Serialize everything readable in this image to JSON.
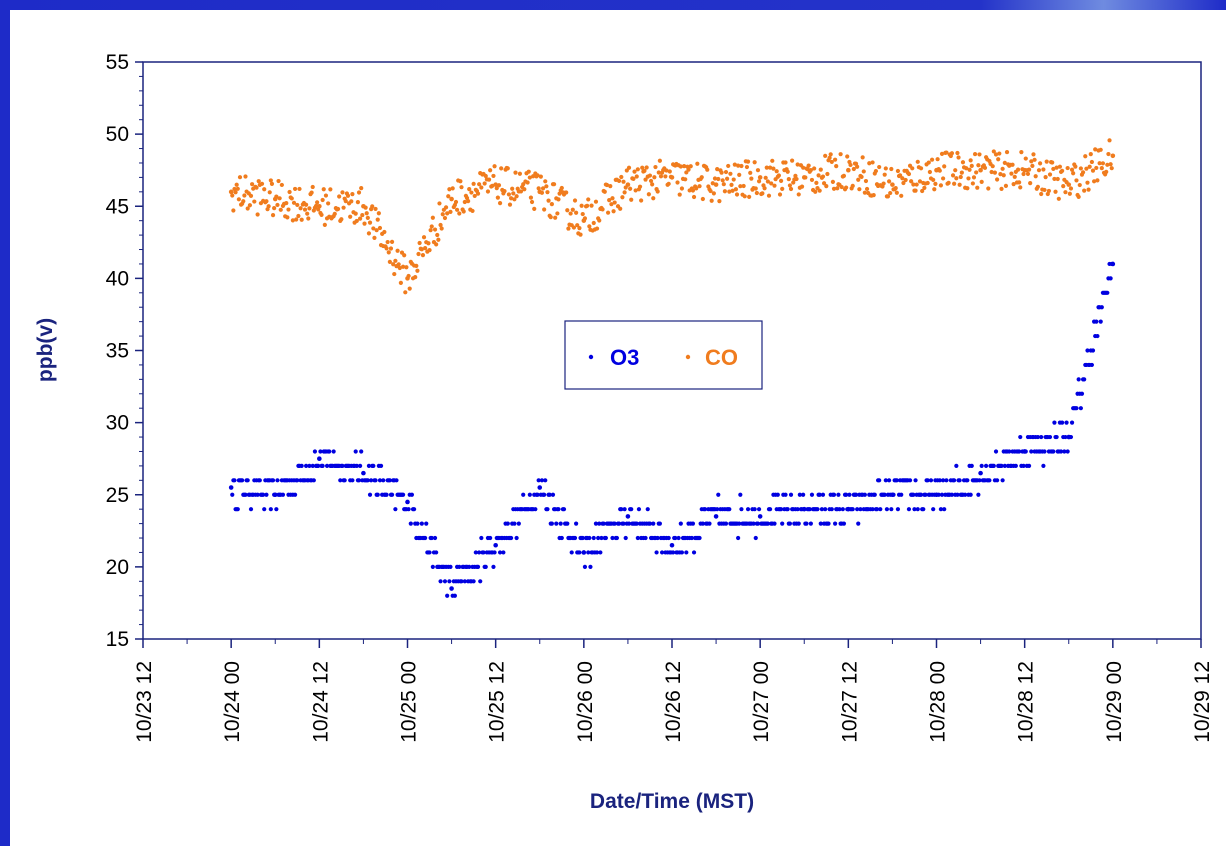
{
  "chart_data": {
    "type": "scatter",
    "xlabel": "Date/Time (MST)",
    "ylabel": "ppb(v)",
    "ylim": [
      15,
      55
    ],
    "yticks": [
      15,
      20,
      25,
      30,
      35,
      40,
      45,
      50,
      55
    ],
    "xlim": [
      "10/23 12",
      "10/29 12"
    ],
    "xticks": [
      "10/23 12",
      "10/24 00",
      "10/24 12",
      "10/25 00",
      "10/25 12",
      "10/26 00",
      "10/26 12",
      "10/27 00",
      "10/27 12",
      "10/28 00",
      "10/28 12",
      "10/29 00",
      "10/29 12"
    ],
    "grid": false,
    "legend": "center",
    "colors": {
      "O3": "#0000E0",
      "CO": "#F07C1E",
      "axis": "#1A237E"
    },
    "series": [
      {
        "name": "O3",
        "x": [
          "10/24 00",
          "10/24 06",
          "10/24 12",
          "10/24 18",
          "10/25 00",
          "10/25 06",
          "10/25 12",
          "10/25 18",
          "10/26 00",
          "10/26 06",
          "10/26 12",
          "10/26 18",
          "10/27 00",
          "10/27 06",
          "10/27 12",
          "10/27 18",
          "10/28 00",
          "10/28 06",
          "10/28 12",
          "10/28 18",
          "10/29 00"
        ],
        "y": [
          25.5,
          25.0,
          27.5,
          26.5,
          24.5,
          18.5,
          21.5,
          25.5,
          21.0,
          23.5,
          21.5,
          23.5,
          23.5,
          24.0,
          24.0,
          25.0,
          25.0,
          26.5,
          28.0,
          29.0,
          41.0
        ]
      },
      {
        "name": "CO",
        "x": [
          "10/24 00",
          "10/24 06",
          "10/24 12",
          "10/24 18",
          "10/25 00",
          "10/25 06",
          "10/25 12",
          "10/25 18",
          "10/26 00",
          "10/26 06",
          "10/26 12",
          "10/26 18",
          "10/27 00",
          "10/27 06",
          "10/27 12",
          "10/27 18",
          "10/28 00",
          "10/28 06",
          "10/28 12",
          "10/28 18",
          "10/29 00"
        ],
        "y": [
          46.0,
          45.5,
          45.0,
          45.0,
          40.0,
          45.5,
          46.5,
          46.0,
          44.0,
          46.5,
          47.0,
          46.5,
          47.0,
          47.0,
          47.5,
          46.5,
          47.5,
          47.5,
          47.5,
          46.5,
          48.5
        ]
      }
    ]
  }
}
